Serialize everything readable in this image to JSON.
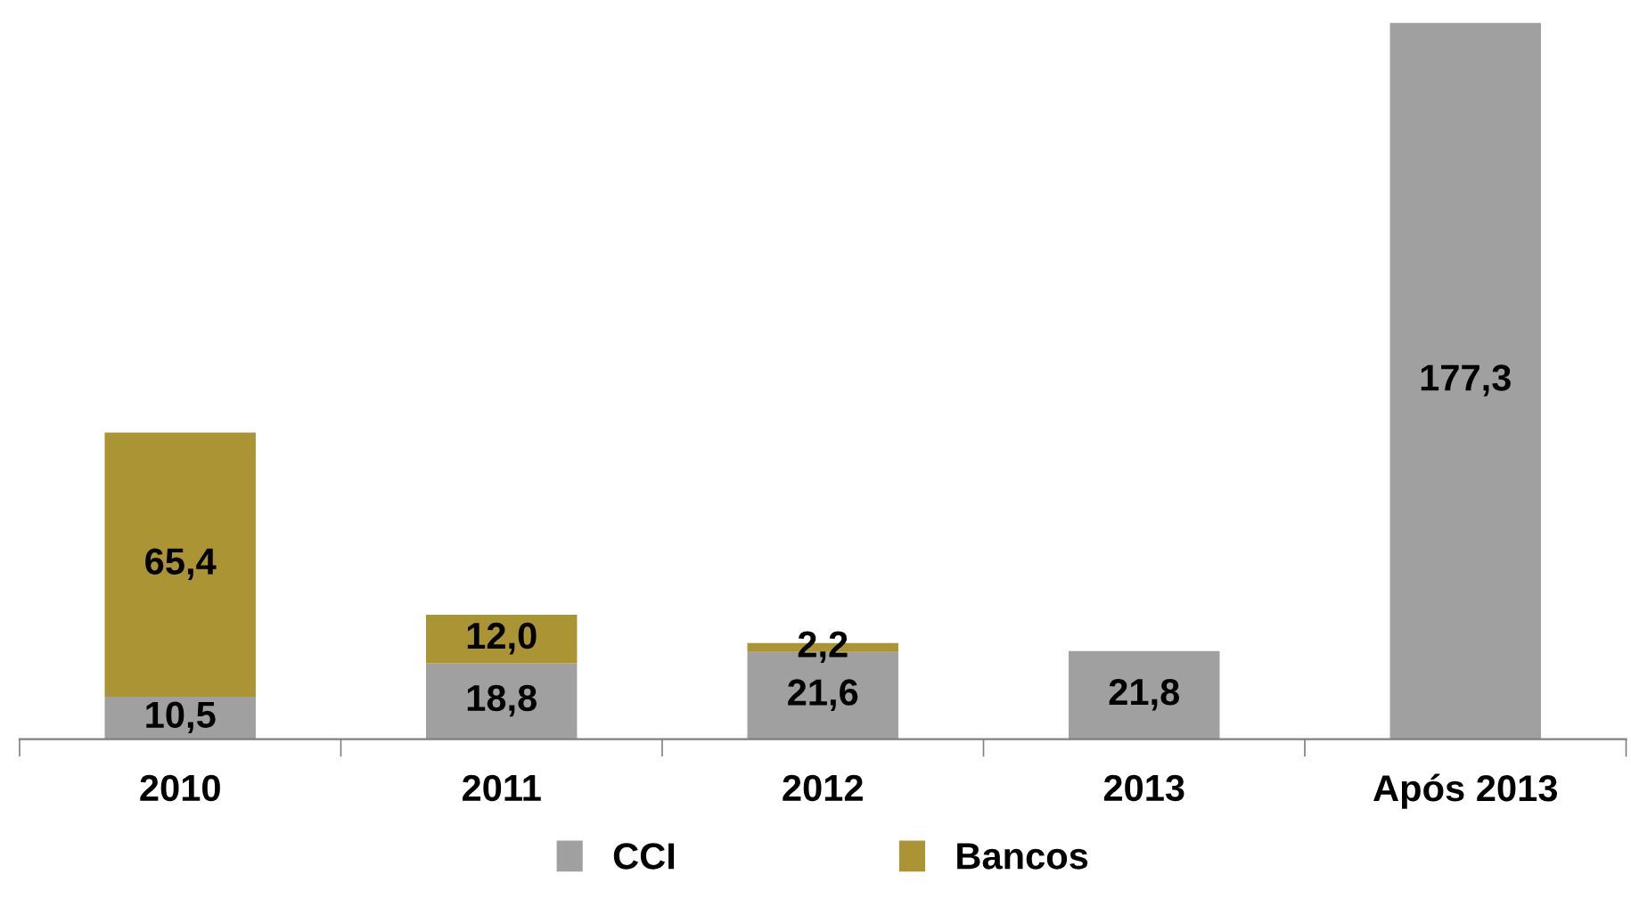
{
  "chart_data": {
    "type": "bar",
    "stacked": true,
    "categories": [
      "2010",
      "2011",
      "2012",
      "2013",
      "Após 2013"
    ],
    "series": [
      {
        "name": "CCI",
        "color": "#a0a0a0",
        "values": [
          10.5,
          18.8,
          21.6,
          21.8,
          177.3
        ],
        "value_labels": [
          "10,5",
          "18,8",
          "21,6",
          "21,8",
          "177,3"
        ]
      },
      {
        "name": "Bancos",
        "color": "#ab9433",
        "values": [
          65.4,
          12.0,
          2.2,
          null,
          null
        ],
        "value_labels": [
          "65,4",
          "12,0",
          "2,2",
          null,
          null
        ]
      }
    ],
    "legend": "bottom",
    "grid": false
  }
}
